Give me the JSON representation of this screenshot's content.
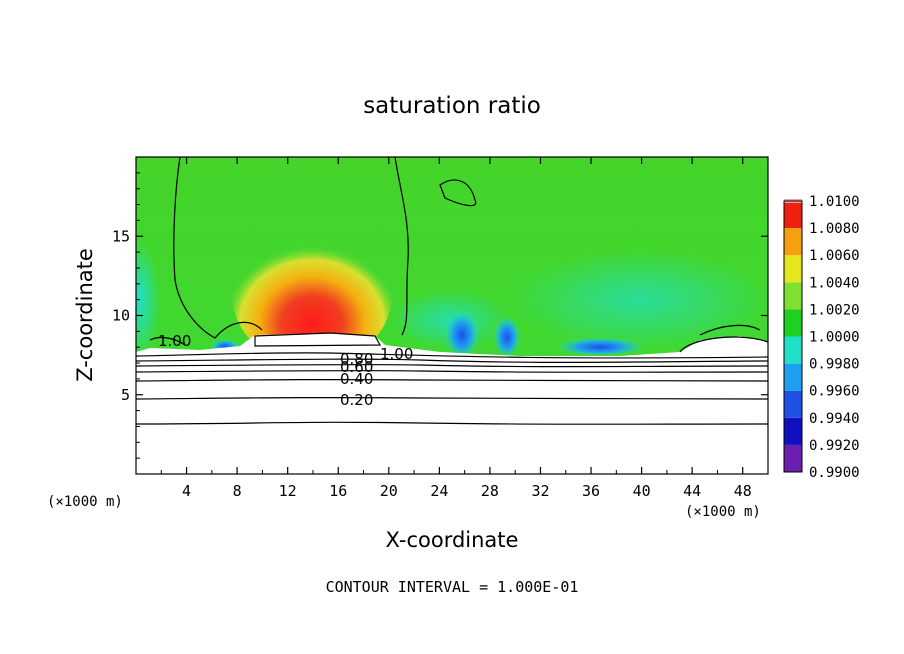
{
  "chart_data": {
    "type": "heatmap",
    "title": "saturation ratio",
    "xlabel": "X-coordinate",
    "ylabel": "Z-coordinate",
    "x_unit": "(×1000 m)",
    "x_unit_right": "(×1000 m)",
    "xlim": [
      0,
      50
    ],
    "ylim": [
      0,
      20
    ],
    "x_ticks": [
      4,
      8,
      12,
      16,
      20,
      24,
      28,
      32,
      36,
      40,
      44,
      48
    ],
    "x_tick_labels": [
      "4",
      "8",
      "12",
      "16",
      "20",
      "24",
      "28",
      "32",
      "36",
      "40",
      "44",
      "48"
    ],
    "y_ticks": [
      5,
      10,
      15
    ],
    "y_tick_labels": [
      "5",
      "10",
      "15"
    ],
    "grid": false,
    "colorbar": {
      "placement": "right",
      "range": [
        0.99,
        1.01
      ],
      "levels": [
        "0.9900",
        "0.9920",
        "0.9940",
        "0.9960",
        "0.9980",
        "1.0000",
        "1.0020",
        "1.0040",
        "1.0060",
        "1.0080",
        "1.0100"
      ],
      "colors": [
        "#6a1fb0",
        "#1010c0",
        "#1e50e6",
        "#1ea0f0",
        "#20e0c8",
        "#20d020",
        "#80e030",
        "#e6e61e",
        "#f5a010",
        "#ee2010",
        "#f0a0a0"
      ]
    },
    "contour_labels": [
      "1.00",
      "1.00",
      "0.80",
      "0.60",
      "0.40",
      "0.20"
    ],
    "contour_interval_text": "CONTOUR INTERVAL = 1.000E-01"
  }
}
